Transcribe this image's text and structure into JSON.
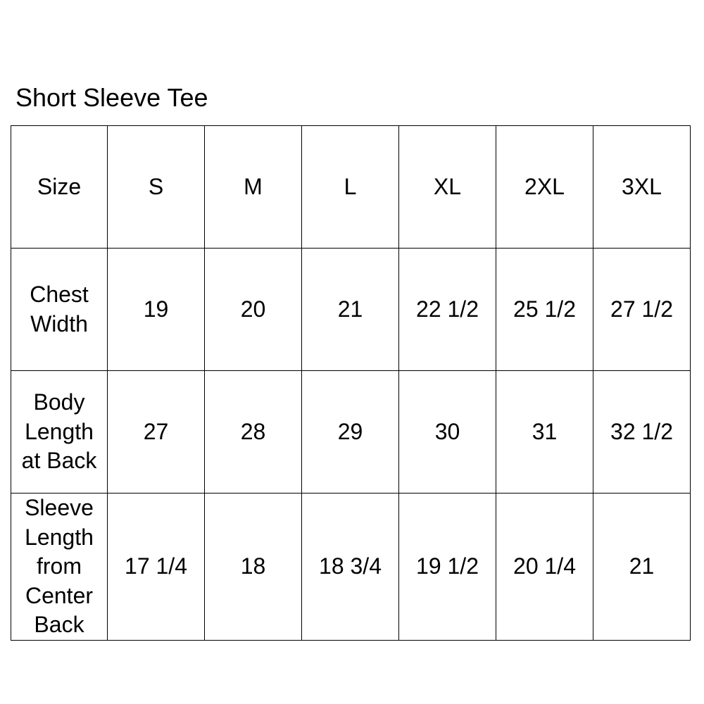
{
  "page": {
    "background_color": "#ffffff",
    "text_color": "#000000",
    "border_color": "#000000"
  },
  "chart_data": {
    "type": "table",
    "title": "Short Sleeve Tee",
    "columns": [
      "Size",
      "S",
      "M",
      "L",
      "XL",
      "2XL",
      "3XL"
    ],
    "rows": [
      {
        "label": "Chest Width",
        "values": [
          "19",
          "20",
          "21",
          "22 1/2",
          "25 1/2",
          "27 1/2"
        ]
      },
      {
        "label": "Body Length at Back",
        "values": [
          "27",
          "28",
          "29",
          "30",
          "31",
          "32 1/2"
        ]
      },
      {
        "label": "Sleeve Length from Center Back",
        "values": [
          "17 1/4",
          "18",
          "18 3/4",
          "19 1/2",
          "20 1/4",
          "21"
        ]
      }
    ]
  }
}
